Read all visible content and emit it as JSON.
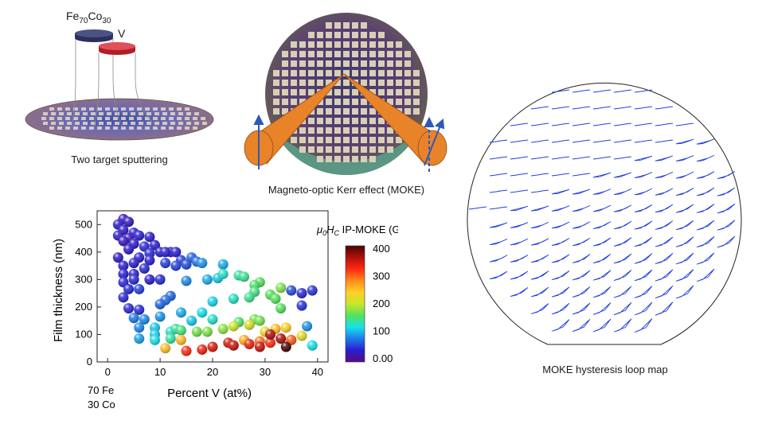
{
  "panels": {
    "sputtering": {
      "caption": "Two target sputtering",
      "target1": {
        "base": "Fe",
        "sub1": "70",
        "mid": "Co",
        "sub2": "30"
      },
      "target2": "V"
    },
    "moke": {
      "caption": "Magneto-optic Kerr effect (MOKE)"
    },
    "loopmap": {
      "caption": "MOKE hysteresis loop map"
    }
  },
  "colors": {
    "target1": "#2a2f5c",
    "target2": "#c0202c",
    "beam": "#e8832a",
    "arrow": "#2f58b7",
    "loop": "#1f3fe0"
  },
  "chart_data": {
    "type": "scatter",
    "xlabel": "Percent V (at%)",
    "ylabel": "Film thickness (nm)",
    "x_ticks": [
      "0",
      "10",
      "20",
      "30",
      "40"
    ],
    "y_ticks": [
      "0",
      "100",
      "200",
      "300",
      "400",
      "500"
    ],
    "xlim": [
      -2,
      42
    ],
    "ylim": [
      0,
      550
    ],
    "origin_label": [
      "70 Fe",
      "30 Co"
    ],
    "colorbar": {
      "title_parts": [
        "μ",
        "0",
        "H",
        "C",
        " IP-MOKE (G)"
      ],
      "ticks": [
        "400",
        "300",
        "200",
        "100",
        "0.00"
      ],
      "range": [
        0,
        400
      ],
      "stops": [
        "#5a0a82",
        "#2a1ed0",
        "#1e7be8",
        "#18e0ea",
        "#55e25b",
        "#c8e62a",
        "#ffcf2a",
        "#ff8a1a",
        "#ff2a12",
        "#b0100c",
        "#4a0404"
      ]
    },
    "points": [
      {
        "x": 3,
        "y": 520,
        "c": 30
      },
      {
        "x": 2,
        "y": 500,
        "c": 40
      },
      {
        "x": 4,
        "y": 510,
        "c": 30
      },
      {
        "x": 3,
        "y": 480,
        "c": 35
      },
      {
        "x": 5,
        "y": 470,
        "c": 40
      },
      {
        "x": 2,
        "y": 460,
        "c": 35
      },
      {
        "x": 4,
        "y": 450,
        "c": 30
      },
      {
        "x": 6,
        "y": 460,
        "c": 40
      },
      {
        "x": 8,
        "y": 455,
        "c": 40
      },
      {
        "x": 3,
        "y": 440,
        "c": 30
      },
      {
        "x": 5,
        "y": 430,
        "c": 35
      },
      {
        "x": 7,
        "y": 420,
        "c": 45
      },
      {
        "x": 9,
        "y": 425,
        "c": 40
      },
      {
        "x": 4,
        "y": 410,
        "c": 35
      },
      {
        "x": 10,
        "y": 400,
        "c": 40
      },
      {
        "x": 8,
        "y": 395,
        "c": 45
      },
      {
        "x": 12,
        "y": 400,
        "c": 45
      },
      {
        "x": 11,
        "y": 400,
        "c": 40
      },
      {
        "x": 13,
        "y": 400,
        "c": 40
      },
      {
        "x": 2,
        "y": 380,
        "c": 35
      },
      {
        "x": 6,
        "y": 380,
        "c": 40
      },
      {
        "x": 8,
        "y": 370,
        "c": 40
      },
      {
        "x": 3,
        "y": 350,
        "c": 40
      },
      {
        "x": 5,
        "y": 360,
        "c": 40
      },
      {
        "x": 11,
        "y": 360,
        "c": 55
      },
      {
        "x": 14,
        "y": 370,
        "c": 55
      },
      {
        "x": 16,
        "y": 380,
        "c": 70
      },
      {
        "x": 17,
        "y": 365,
        "c": 75
      },
      {
        "x": 18,
        "y": 360,
        "c": 90
      },
      {
        "x": 13,
        "y": 350,
        "c": 55
      },
      {
        "x": 15,
        "y": 355,
        "c": 60
      },
      {
        "x": 22,
        "y": 355,
        "c": 100
      },
      {
        "x": 7,
        "y": 340,
        "c": 45
      },
      {
        "x": 3,
        "y": 320,
        "c": 40
      },
      {
        "x": 5,
        "y": 320,
        "c": 40
      },
      {
        "x": 3,
        "y": 290,
        "c": 45
      },
      {
        "x": 5,
        "y": 300,
        "c": 45
      },
      {
        "x": 8,
        "y": 300,
        "c": 40
      },
      {
        "x": 10,
        "y": 300,
        "c": 45
      },
      {
        "x": 15,
        "y": 295,
        "c": 85
      },
      {
        "x": 19,
        "y": 300,
        "c": 100
      },
      {
        "x": 21,
        "y": 305,
        "c": 110
      },
      {
        "x": 22,
        "y": 320,
        "c": 130
      },
      {
        "x": 25,
        "y": 315,
        "c": 140
      },
      {
        "x": 26,
        "y": 310,
        "c": 145
      },
      {
        "x": 29,
        "y": 290,
        "c": 160
      },
      {
        "x": 28,
        "y": 280,
        "c": 155
      },
      {
        "x": 33,
        "y": 270,
        "c": 175
      },
      {
        "x": 35,
        "y": 260,
        "c": 60
      },
      {
        "x": 37,
        "y": 250,
        "c": 45
      },
      {
        "x": 39,
        "y": 260,
        "c": 50
      },
      {
        "x": 4,
        "y": 265,
        "c": 45
      },
      {
        "x": 6,
        "y": 265,
        "c": 55
      },
      {
        "x": 3,
        "y": 235,
        "c": 45
      },
      {
        "x": 12,
        "y": 240,
        "c": 70
      },
      {
        "x": 11,
        "y": 225,
        "c": 75
      },
      {
        "x": 28,
        "y": 255,
        "c": 150
      },
      {
        "x": 31,
        "y": 245,
        "c": 160
      },
      {
        "x": 24,
        "y": 230,
        "c": 130
      },
      {
        "x": 20,
        "y": 220,
        "c": 115
      },
      {
        "x": 27,
        "y": 235,
        "c": 145
      },
      {
        "x": 32,
        "y": 230,
        "c": 160
      },
      {
        "x": 37,
        "y": 205,
        "c": 50
      },
      {
        "x": 33,
        "y": 195,
        "c": 160
      },
      {
        "x": 10,
        "y": 210,
        "c": 70
      },
      {
        "x": 4,
        "y": 195,
        "c": 45
      },
      {
        "x": 6,
        "y": 190,
        "c": 45
      },
      {
        "x": 5,
        "y": 160,
        "c": 80
      },
      {
        "x": 7,
        "y": 155,
        "c": 85
      },
      {
        "x": 10,
        "y": 165,
        "c": 90
      },
      {
        "x": 18,
        "y": 180,
        "c": 120
      },
      {
        "x": 14,
        "y": 180,
        "c": 100
      },
      {
        "x": 6,
        "y": 125,
        "c": 85
      },
      {
        "x": 9,
        "y": 125,
        "c": 110
      },
      {
        "x": 16,
        "y": 150,
        "c": 110
      },
      {
        "x": 20,
        "y": 155,
        "c": 130
      },
      {
        "x": 25,
        "y": 145,
        "c": 155
      },
      {
        "x": 28,
        "y": 155,
        "c": 170
      },
      {
        "x": 29,
        "y": 150,
        "c": 170
      },
      {
        "x": 38,
        "y": 130,
        "c": 90
      },
      {
        "x": 6,
        "y": 85,
        "c": 95
      },
      {
        "x": 9,
        "y": 100,
        "c": 110
      },
      {
        "x": 12,
        "y": 110,
        "c": 130
      },
      {
        "x": 13,
        "y": 120,
        "c": 140
      },
      {
        "x": 14,
        "y": 115,
        "c": 150
      },
      {
        "x": 17,
        "y": 110,
        "c": 170
      },
      {
        "x": 19,
        "y": 110,
        "c": 175
      },
      {
        "x": 22,
        "y": 120,
        "c": 180
      },
      {
        "x": 24,
        "y": 130,
        "c": 200
      },
      {
        "x": 27,
        "y": 135,
        "c": 210
      },
      {
        "x": 30,
        "y": 110,
        "c": 230
      },
      {
        "x": 32,
        "y": 120,
        "c": 250
      },
      {
        "x": 34,
        "y": 125,
        "c": 240
      },
      {
        "x": 37,
        "y": 95,
        "c": 220
      },
      {
        "x": 9,
        "y": 80,
        "c": 120
      },
      {
        "x": 12,
        "y": 85,
        "c": 140
      },
      {
        "x": 14,
        "y": 80,
        "c": 250
      },
      {
        "x": 26,
        "y": 80,
        "c": 260
      },
      {
        "x": 29,
        "y": 75,
        "c": 290
      },
      {
        "x": 31,
        "y": 70,
        "c": 320
      },
      {
        "x": 35,
        "y": 80,
        "c": 300
      },
      {
        "x": 11,
        "y": 50,
        "c": 250
      },
      {
        "x": 15,
        "y": 40,
        "c": 320
      },
      {
        "x": 18,
        "y": 45,
        "c": 330
      },
      {
        "x": 20,
        "y": 55,
        "c": 340
      },
      {
        "x": 23,
        "y": 70,
        "c": 340
      },
      {
        "x": 24,
        "y": 60,
        "c": 350
      },
      {
        "x": 27,
        "y": 65,
        "c": 330
      },
      {
        "x": 29,
        "y": 55,
        "c": 350
      },
      {
        "x": 31,
        "y": 100,
        "c": 360
      },
      {
        "x": 33,
        "y": 85,
        "c": 360
      },
      {
        "x": 34,
        "y": 55,
        "c": 400
      },
      {
        "x": 39,
        "y": 60,
        "c": 120
      }
    ]
  }
}
